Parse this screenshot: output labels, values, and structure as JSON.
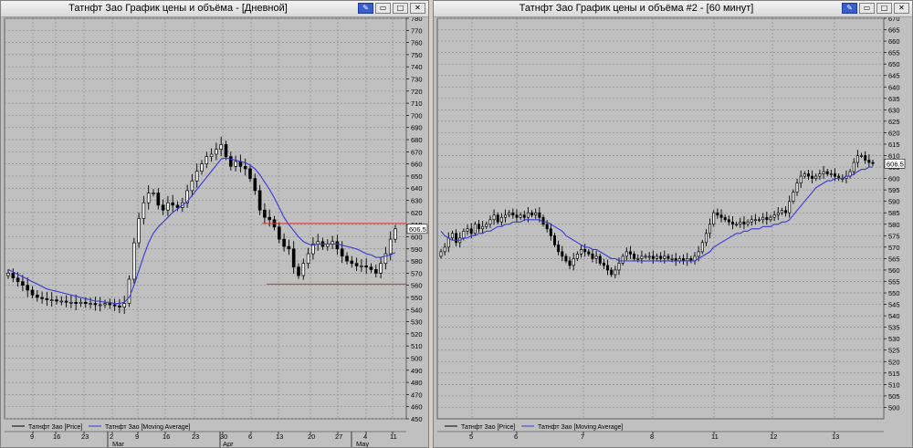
{
  "windows": [
    {
      "title": "Татнфт Зао График цены и объёма - [Дневной]",
      "chart_data": {
        "type": "candlestick",
        "ylim": [
          450,
          780
        ],
        "y_ticks": [
          450,
          460,
          470,
          480,
          490,
          500,
          510,
          520,
          530,
          540,
          550,
          560,
          570,
          580,
          590,
          600,
          610,
          620,
          630,
          640,
          650,
          660,
          670,
          680,
          690,
          700,
          710,
          720,
          730,
          740,
          750,
          760,
          770,
          780
        ],
        "x_tick_labels": [
          "9",
          "16",
          "23",
          "2",
          "9",
          "16",
          "23",
          "30",
          "6",
          "13",
          "20",
          "27",
          "4",
          "11"
        ],
        "month_labels": [
          "Mar",
          "Apr",
          "May"
        ],
        "last_price_label": "606.5",
        "series": [
          {
            "name": "Татнфт Зао [Price]",
            "color": "#000000",
            "close": [
              570,
              566,
              563,
              560,
              556,
              552,
              550,
              549,
              548,
              548,
              547,
              547,
              546,
              546,
              545,
              546,
              545,
              545,
              544,
              544,
              545,
              544,
              543,
              542,
              545,
              565,
              595,
              615,
              628,
              636,
              636,
              626,
              622,
              628,
              626,
              624,
              628,
              638,
              646,
              654,
              660,
              666,
              668,
              672,
              676,
              666,
              658,
              662,
              658,
              656,
              648,
              638,
              622,
              616,
              614,
              608,
              598,
              592,
              590,
              575,
              568,
              578,
              586,
              594,
              596,
              592,
              594,
              596,
              590,
              584,
              580,
              578,
              576,
              576,
              575,
              573,
              570,
              578,
              586,
              598,
              606.5
            ]
          },
          {
            "name": "Татнфт Зао [Moving Average]",
            "color": "#3838d8",
            "values": [
              573,
              571,
              569,
              567,
              565,
              563,
              561,
              559,
              557,
              556,
              555,
              554,
              553,
              552,
              551,
              550,
              549,
              548,
              547,
              547,
              546,
              546,
              545,
              545,
              546,
              550,
              560,
              572,
              584,
              595,
              603,
              608,
              612,
              616,
              620,
              623,
              626,
              629,
              634,
              639,
              644,
              649,
              654,
              659,
              664,
              665,
              664,
              663,
              662,
              661,
              659,
              656,
              651,
              645,
              639,
              632,
              624,
              616,
              610,
              605,
              600,
              596,
              594,
              593,
              594,
              594,
              594,
              594,
              594,
              593,
              592,
              591,
              590,
              588,
              586,
              585,
              583,
              583,
              584,
              585,
              587
            ]
          }
        ],
        "horizontal_lines": [
          {
            "value": 611,
            "color": "#e03030"
          },
          {
            "value": 561,
            "color": "#e03030"
          }
        ]
      }
    },
    {
      "title": "Татнфт Зао График цены и объёма #2 - [60 минут]",
      "chart_data": {
        "type": "candlestick",
        "ylim": [
          495,
          670
        ],
        "y_ticks": [
          500,
          505,
          510,
          515,
          520,
          525,
          530,
          535,
          540,
          545,
          550,
          555,
          560,
          565,
          570,
          575,
          580,
          585,
          590,
          595,
          600,
          605,
          610,
          615,
          620,
          625,
          630,
          635,
          640,
          645,
          650,
          655,
          660,
          665,
          670
        ],
        "x_tick_labels": [
          "5",
          "6",
          "7",
          "8",
          "11",
          "12",
          "13"
        ],
        "last_price_label": "606.5",
        "series": [
          {
            "name": "Татнфт Зао [Price]",
            "color": "#000000",
            "close": [
              568,
              570,
              574,
              576,
              572,
              574,
              577,
              578,
              576,
              580,
              578,
              579,
              580,
              582,
              584,
              581,
              583,
              584,
              585,
              584,
              583,
              584,
              583,
              585,
              584,
              585,
              583,
              580,
              578,
              575,
              571,
              568,
              566,
              564,
              562,
              565,
              567,
              569,
              568,
              567,
              565,
              566,
              563,
              562,
              560,
              558,
              560,
              563,
              566,
              568,
              567,
              565,
              565,
              566,
              566,
              566,
              565,
              566,
              565,
              566,
              565,
              565,
              564,
              565,
              564,
              565,
              564,
              566,
              568,
              572,
              576,
              580,
              585,
              584,
              583,
              582,
              581,
              580,
              580,
              581,
              580,
              581,
              582,
              582,
              582,
              583,
              582,
              583,
              584,
              585,
              586,
              585,
              590,
              594,
              598,
              601,
              602,
              601,
              600,
              601,
              602,
              603,
              602,
              602,
              601,
              600,
              600,
              601,
              603,
              607,
              610,
              610,
              608,
              607,
              606.5
            ]
          },
          {
            "name": "Татнфт Зао [Moving Average]",
            "color": "#3838d8",
            "values": [
              577,
              575,
              574,
              573,
              573,
              573,
              574,
              574,
              575,
              575,
              576,
              576,
              577,
              577,
              578,
              579,
              579,
              580,
              580,
              581,
              581,
              581,
              582,
              582,
              582,
              582,
              582,
              581,
              581,
              580,
              579,
              578,
              577,
              575,
              574,
              573,
              572,
              571,
              570,
              570,
              569,
              569,
              568,
              567,
              566,
              565,
              565,
              564,
              564,
              564,
              564,
              564,
              564,
              564,
              564,
              564,
              564,
              564,
              564,
              564,
              564,
              564,
              564,
              564,
              564,
              564,
              564,
              564,
              565,
              566,
              567,
              568,
              570,
              571,
              572,
              573,
              574,
              575,
              576,
              576,
              577,
              577,
              578,
              578,
              578,
              579,
              579,
              579,
              580,
              580,
              581,
              581,
              582,
              584,
              586,
              588,
              590,
              592,
              594,
              596,
              597,
              598,
              599,
              599,
              600,
              600,
              600,
              601,
              601,
              602,
              603,
              604,
              604,
              605,
              605
            ]
          }
        ]
      }
    }
  ]
}
